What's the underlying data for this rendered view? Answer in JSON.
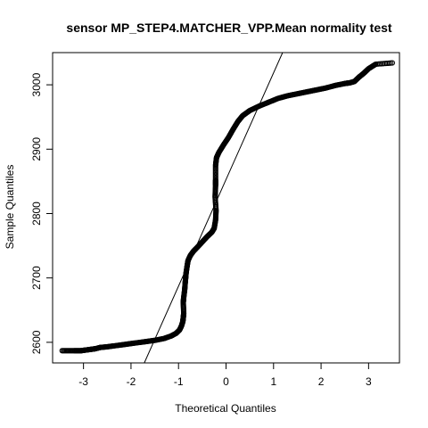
{
  "chart_data": {
    "type": "scatter",
    "title": "sensor MP_STEP4.MATCHER_VPP.Mean normality test",
    "xlabel": "Theoretical Quantiles",
    "ylabel": "Sample Quantiles",
    "xlim": [
      -3.65,
      3.65
    ],
    "ylim": [
      2568,
      3050
    ],
    "xticks": [
      -3,
      -2,
      -1,
      0,
      1,
      2,
      3
    ],
    "yticks": [
      2600,
      2700,
      2800,
      2900,
      3000
    ],
    "grid": false,
    "reference_line": {
      "points": [
        [
          -1.72,
          2568
        ],
        [
          1.19,
          3050
        ]
      ]
    },
    "points": [
      [
        -3.45,
        2587
      ],
      [
        -3.2,
        2587
      ],
      [
        -3.05,
        2587
      ],
      [
        -2.95,
        2588
      ],
      [
        -2.85,
        2589
      ],
      [
        -2.75,
        2590
      ],
      [
        -2.65,
        2592
      ],
      [
        -2.5,
        2593
      ],
      [
        -2.3,
        2595
      ],
      [
        -2.1,
        2597
      ],
      [
        -1.9,
        2599
      ],
      [
        -1.7,
        2601
      ],
      [
        -1.5,
        2603
      ],
      [
        -1.3,
        2606
      ],
      [
        -1.15,
        2610
      ],
      [
        -1.05,
        2614
      ],
      [
        -0.98,
        2619
      ],
      [
        -0.94,
        2625
      ],
      [
        -0.91,
        2632
      ],
      [
        -0.9,
        2638
      ],
      [
        -0.89,
        2645
      ],
      [
        -0.9,
        2662
      ],
      [
        -0.89,
        2670
      ],
      [
        -0.87,
        2682
      ],
      [
        -0.86,
        2692
      ],
      [
        -0.85,
        2700
      ],
      [
        -0.84,
        2708
      ],
      [
        -0.82,
        2718
      ],
      [
        -0.8,
        2727
      ],
      [
        -0.75,
        2735
      ],
      [
        -0.68,
        2742
      ],
      [
        -0.6,
        2748
      ],
      [
        -0.5,
        2756
      ],
      [
        -0.4,
        2764
      ],
      [
        -0.3,
        2771
      ],
      [
        -0.25,
        2777
      ],
      [
        -0.22,
        2790
      ],
      [
        -0.21,
        2805
      ],
      [
        -0.23,
        2826
      ],
      [
        -0.22,
        2844
      ],
      [
        -0.22,
        2852
      ],
      [
        -0.22,
        2875
      ],
      [
        -0.2,
        2887
      ],
      [
        -0.15,
        2895
      ],
      [
        -0.05,
        2907
      ],
      [
        0.05,
        2918
      ],
      [
        0.15,
        2931
      ],
      [
        0.25,
        2943
      ],
      [
        0.35,
        2952
      ],
      [
        0.5,
        2960
      ],
      [
        0.7,
        2967
      ],
      [
        0.9,
        2973
      ],
      [
        1.1,
        2979
      ],
      [
        1.3,
        2983
      ],
      [
        1.5,
        2986
      ],
      [
        1.7,
        2989
      ],
      [
        1.9,
        2992
      ],
      [
        2.1,
        2995
      ],
      [
        2.3,
        2999
      ],
      [
        2.5,
        3002
      ],
      [
        2.6,
        3003
      ],
      [
        2.7,
        3005
      ],
      [
        2.8,
        3012
      ],
      [
        2.9,
        3018
      ],
      [
        3.0,
        3025
      ],
      [
        3.15,
        3032
      ],
      [
        3.5,
        3034
      ]
    ]
  }
}
